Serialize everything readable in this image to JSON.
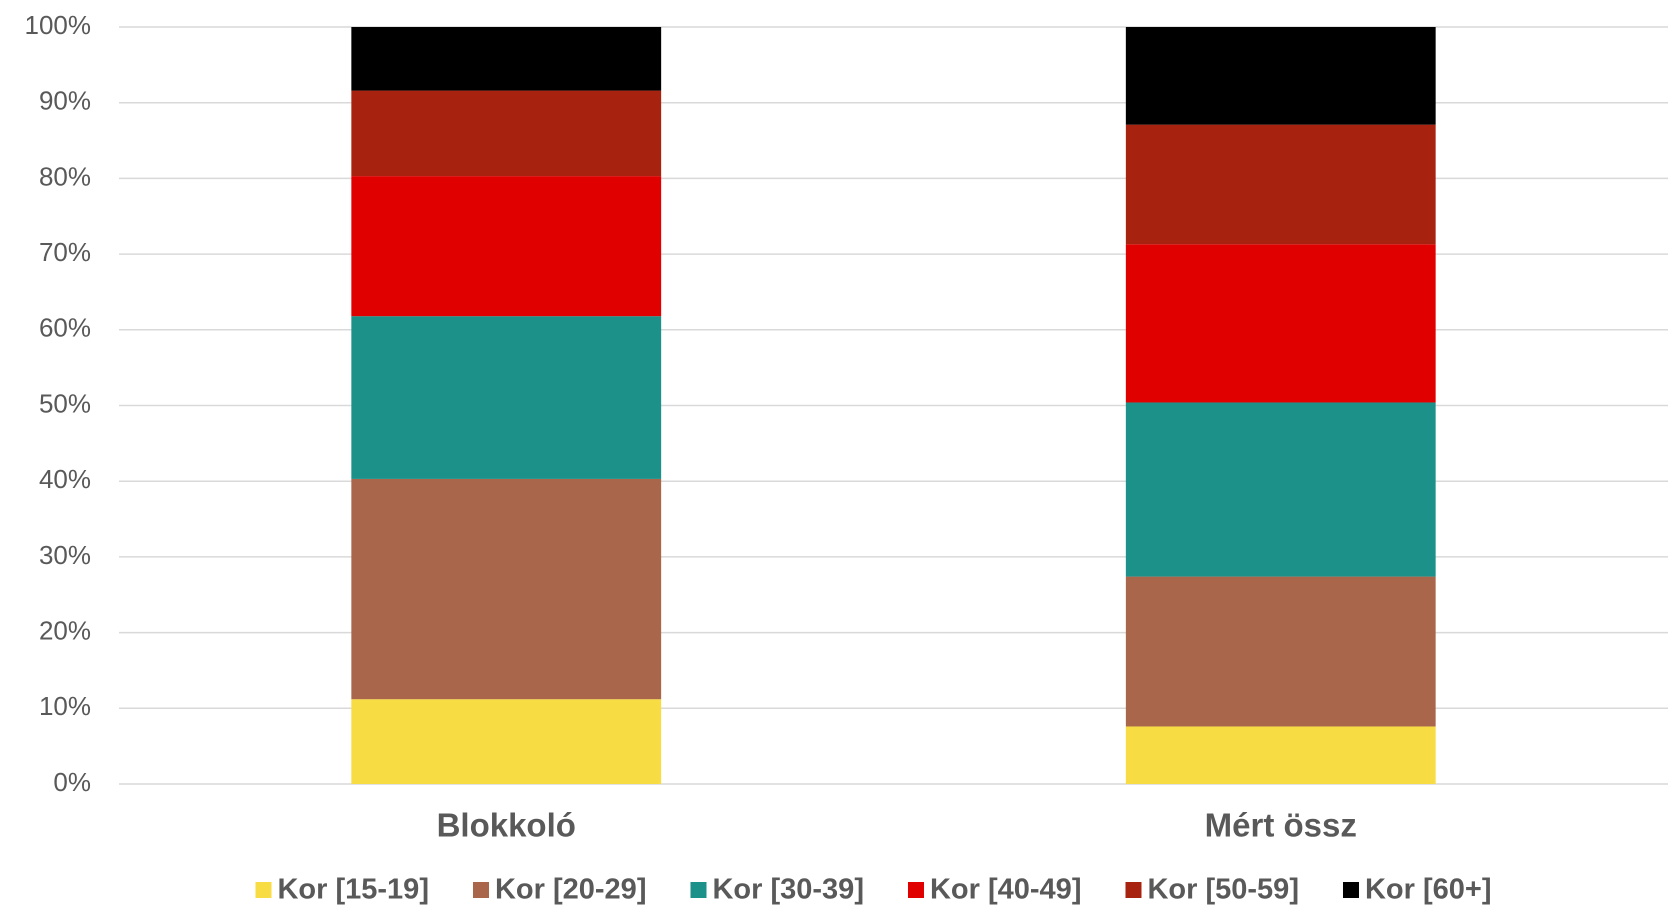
{
  "chart_data": {
    "type": "stacked_bar",
    "categories": [
      "Blokkoló",
      "Mért össz"
    ],
    "series": [
      {
        "name": "Kor [15-19]",
        "color": "#f7dc44",
        "values": [
          11.2,
          7.6
        ]
      },
      {
        "name": "Kor [20-29]",
        "color": "#a9664a",
        "values": [
          29.1,
          19.8
        ]
      },
      {
        "name": "Kor [30-39]",
        "color": "#1c9189",
        "values": [
          21.5,
          23.0
        ]
      },
      {
        "name": "Kor [40-49]",
        "color": "#e00000",
        "values": [
          18.5,
          20.9
        ]
      },
      {
        "name": "Kor [50-59]",
        "color": "#a8230f",
        "values": [
          11.3,
          15.8
        ]
      },
      {
        "name": "Kor [60+]",
        "color": "#000000",
        "values": [
          8.4,
          12.9
        ]
      }
    ],
    "ylim": [
      0,
      100
    ],
    "yticks": [
      {
        "value": 0,
        "label": "0%"
      },
      {
        "value": 10,
        "label": "10%"
      },
      {
        "value": 20,
        "label": "20%"
      },
      {
        "value": 30,
        "label": "30%"
      },
      {
        "value": 40,
        "label": "40%"
      },
      {
        "value": 50,
        "label": "50%"
      },
      {
        "value": 60,
        "label": "60%"
      },
      {
        "value": 70,
        "label": "70%"
      },
      {
        "value": 80,
        "label": "80%"
      },
      {
        "value": 90,
        "label": "90%"
      },
      {
        "value": 100,
        "label": "100%"
      }
    ],
    "grid": true,
    "legend": "bottom"
  }
}
